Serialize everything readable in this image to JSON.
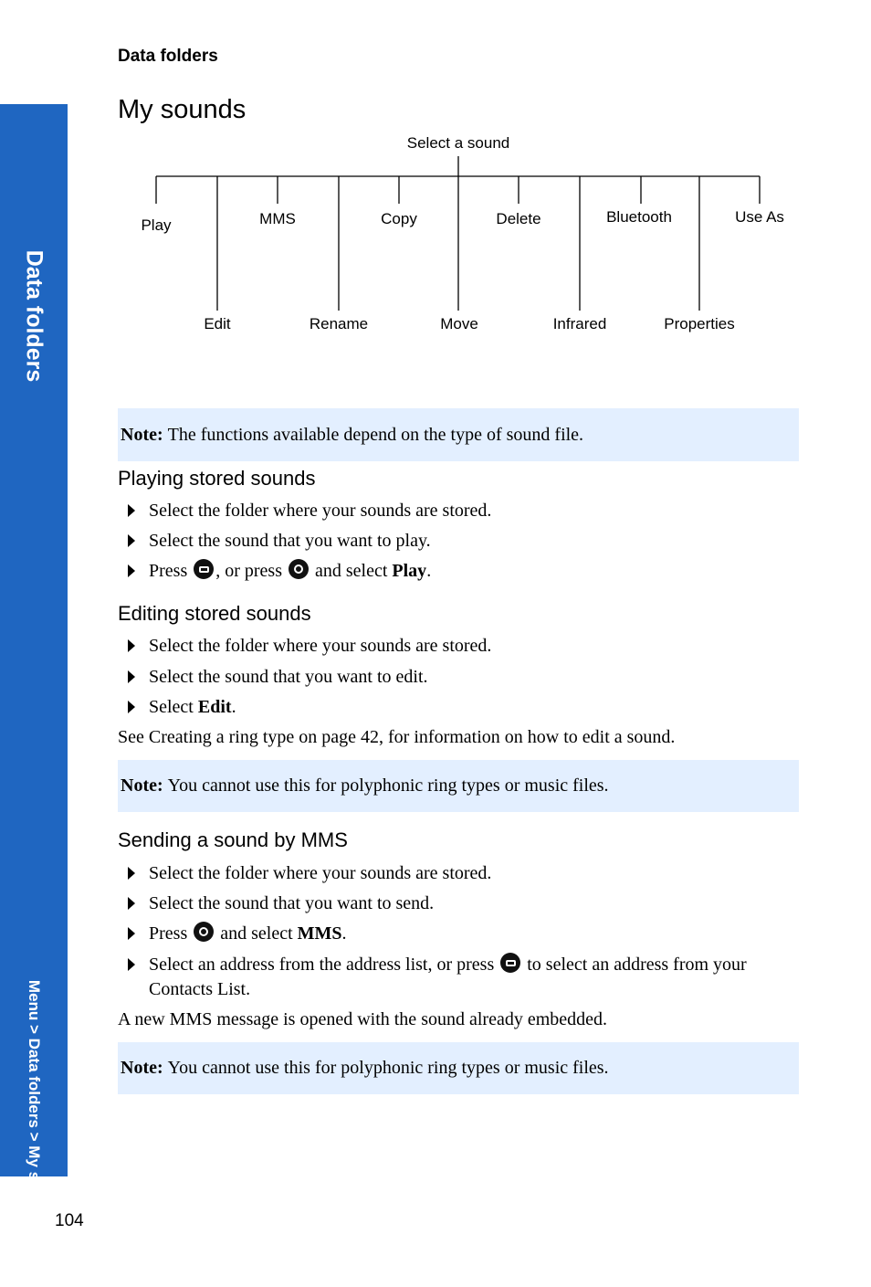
{
  "sidebar": {
    "title": "Data folders",
    "breadcrumb": "Menu > Data folders > My sounds"
  },
  "header": "Data folders",
  "title": "My sounds",
  "tree": {
    "root": "Select a sound",
    "top_items": [
      "Play",
      "MMS",
      "Copy",
      "Delete",
      "Bluetooth",
      "Use As"
    ],
    "bottom_items": [
      "Edit",
      "Rename",
      "Move",
      "Infrared",
      "Properties"
    ]
  },
  "note1": {
    "label": "Note:",
    "text": "The functions available depend on the type of sound file."
  },
  "playing": {
    "heading": "Playing stored sounds",
    "steps": [
      "Select the folder where your sounds are stored.",
      "Select the sound that you want to play."
    ],
    "press": {
      "a": "Press",
      "b": ", or press",
      "c": "and select",
      "bold": "Play",
      "end": "."
    }
  },
  "editing": {
    "heading": "Editing stored sounds",
    "steps": [
      "Select the folder where your sounds are stored.",
      "Select the sound that you want to edit."
    ],
    "select": {
      "a": "Select",
      "bold": "Edit",
      "end": "."
    },
    "after": "See Creating a ring type on page 42, for information on how to edit a sound."
  },
  "note2": {
    "label": "Note:",
    "text": "You cannot use this for polyphonic ring types or music files."
  },
  "sending": {
    "heading": "Sending a sound by MMS",
    "steps": [
      "Select the folder where your sounds are stored.",
      "Select the sound that you want to send."
    ],
    "press": {
      "a": "Press",
      "c": "and select",
      "bold": "MMS",
      "end": "."
    },
    "address": {
      "a": "Select an address from the address list, or press",
      "b": "to select an address from your",
      "c": "Contacts List."
    },
    "after": "A new MMS message is opened with the sound already embedded."
  },
  "note3": {
    "label": "Note:",
    "text": "You cannot use this for polyphonic ring types or music files."
  },
  "page_number": "104",
  "icons": {
    "soft_key": "soft-key-icon",
    "nav_key": "navigation-key-icon",
    "bullet": "bullet-arrow-icon"
  }
}
